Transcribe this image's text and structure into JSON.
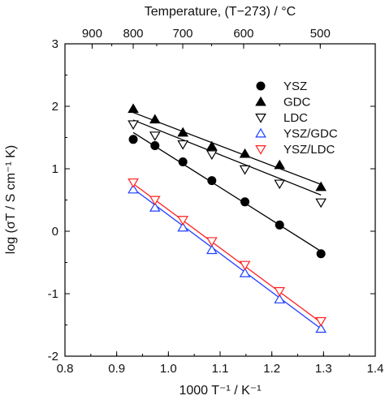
{
  "chart_data": {
    "type": "scatter",
    "xlabel": "1000 T⁻¹ / K⁻¹",
    "ylabel": "log (σT / S cm⁻¹ K)",
    "top_xlabel": "Temperature, (T−273) / °C",
    "xlim": [
      0.8,
      1.4
    ],
    "ylim": [
      -2,
      3
    ],
    "x_ticks": [
      "0.8",
      "0.9",
      "1.0",
      "1.1",
      "1.2",
      "1.3",
      "1.4"
    ],
    "y_ticks": [
      "-2",
      "-1",
      "0",
      "1",
      "2",
      "3"
    ],
    "top_ticks": [
      "900",
      "800",
      "700",
      "600",
      "500"
    ],
    "top_tick_celsius": [
      900,
      800,
      700,
      600,
      500
    ],
    "grid": false,
    "legend_position": "top-right",
    "series": [
      {
        "name": "YSZ",
        "marker": "circle-filled",
        "color": "#000000",
        "x": [
          0.932,
          0.974,
          1.028,
          1.084,
          1.148,
          1.215,
          1.295
        ],
        "y": [
          1.47,
          1.37,
          1.11,
          0.81,
          0.47,
          0.1,
          -0.36
        ],
        "fit": [
          [
            0.932,
            1.58
          ],
          [
            1.295,
            -0.32
          ]
        ]
      },
      {
        "name": "GDC",
        "marker": "triangle-up-filled",
        "color": "#000000",
        "x": [
          0.932,
          0.974,
          1.028,
          1.084,
          1.148,
          1.215,
          1.295
        ],
        "y": [
          1.96,
          1.79,
          1.58,
          1.36,
          1.24,
          1.06,
          0.71
        ],
        "fit": [
          [
            0.932,
            1.9
          ],
          [
            1.295,
            0.75
          ]
        ]
      },
      {
        "name": "LDC",
        "marker": "triangle-down-open",
        "color": "#000000",
        "x": [
          0.932,
          0.974,
          1.028,
          1.084,
          1.148,
          1.215,
          1.295
        ],
        "y": [
          1.71,
          1.53,
          1.39,
          1.23,
          0.99,
          0.76,
          0.46
        ],
        "fit": [
          [
            0.932,
            1.78
          ],
          [
            1.295,
            0.58
          ]
        ]
      },
      {
        "name": "YSZ/GDC",
        "marker": "triangle-up-open",
        "color": "#1f3fff",
        "x": [
          0.932,
          0.974,
          1.028,
          1.084,
          1.148,
          1.215,
          1.295
        ],
        "y": [
          0.67,
          0.38,
          0.06,
          -0.3,
          -0.67,
          -1.09,
          -1.56
        ],
        "fit": [
          [
            0.932,
            0.68
          ],
          [
            1.295,
            -1.56
          ]
        ]
      },
      {
        "name": "YSZ/LDC",
        "marker": "triangle-down-open",
        "color": "#ff2020",
        "x": [
          0.932,
          0.974,
          1.028,
          1.084,
          1.148,
          1.215,
          1.295
        ],
        "y": [
          0.78,
          0.5,
          0.18,
          -0.16,
          -0.54,
          -0.96,
          -1.44
        ],
        "fit": [
          [
            0.932,
            0.76
          ],
          [
            1.295,
            -1.46
          ]
        ]
      }
    ]
  }
}
